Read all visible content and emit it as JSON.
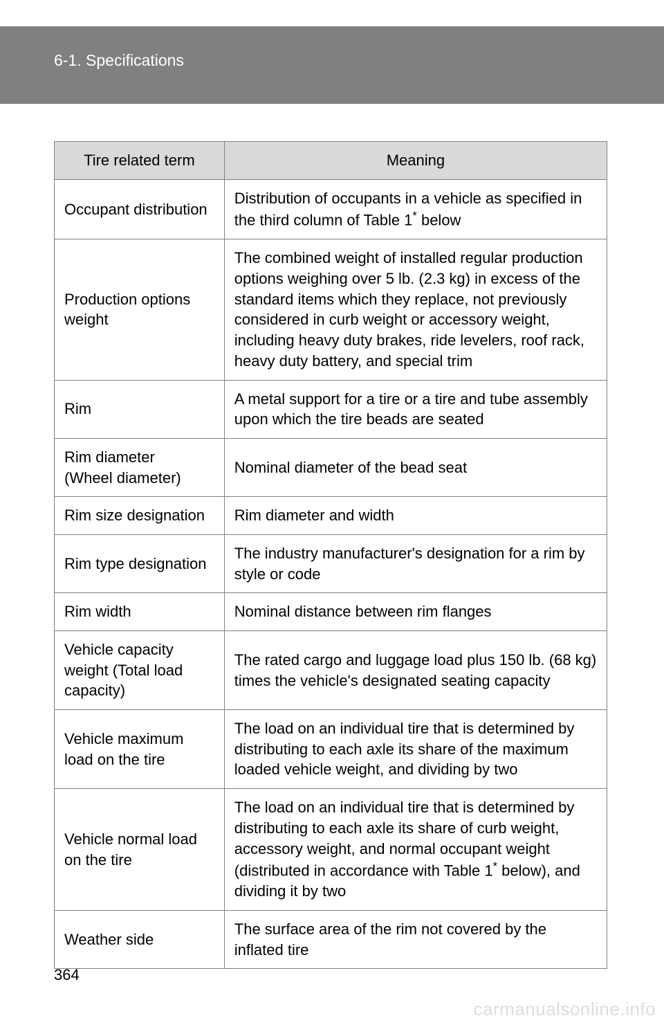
{
  "header": {
    "section": "6-1. Specifications"
  },
  "table": {
    "columns": {
      "term": "Tire related term",
      "meaning": "Meaning"
    },
    "col_widths": {
      "term": 246,
      "meaning": 554
    },
    "header_bg": "#d9d9d9",
    "border_color": "#808080",
    "fontsize": 22,
    "rows": [
      {
        "term": "Occupant distribution",
        "meaning_pre": "Distribution of occupants in a vehicle as specified in the third column of Table 1",
        "meaning_sup": "*",
        "meaning_post": " below"
      },
      {
        "term": "Production options weight",
        "meaning": "The combined weight of installed regular production options weighing over 5 lb. (2.3 kg) in excess of the standard items which they replace, not previously considered in curb weight or accessory weight, including heavy duty brakes, ride levelers, roof rack, heavy duty battery, and special trim"
      },
      {
        "term": "Rim",
        "meaning": "A metal support for a tire or a tire and tube assembly upon which the tire beads are seated"
      },
      {
        "term": "Rim diameter\n(Wheel diameter)",
        "meaning": "Nominal diameter of the bead seat"
      },
      {
        "term": "Rim size designation",
        "meaning": "Rim diameter and width"
      },
      {
        "term": "Rim type designation",
        "meaning": "The industry manufacturer's designation for a rim by style or code"
      },
      {
        "term": "Rim width",
        "meaning": "Nominal distance between rim flanges"
      },
      {
        "term": "Vehicle capacity weight (Total load capacity)",
        "meaning": "The rated cargo and luggage load plus 150 lb. (68 kg) times the vehicle's designated seating capacity"
      },
      {
        "term": "Vehicle maximum load on the tire",
        "meaning": "The load on an individual tire that is determined by distributing to each axle its share of the maximum loaded vehicle weight, and dividing by two"
      },
      {
        "term": "Vehicle normal load on the tire",
        "meaning_pre": "The load on an individual tire that is determined by distributing to each axle its share of curb weight, accessory weight, and normal occupant weight (distributed in accordance with Table 1",
        "meaning_sup": "*",
        "meaning_post": " below), and dividing it by two"
      },
      {
        "term": "Weather side",
        "meaning": "The surface area of the rim not covered by the inflated tire"
      }
    ]
  },
  "page_number": "364",
  "watermark": "carmanualsonline.info",
  "colors": {
    "header_band": "#808080",
    "header_text": "#ffffff",
    "page_bg": "#ffffff",
    "watermark": "#dddddd"
  }
}
